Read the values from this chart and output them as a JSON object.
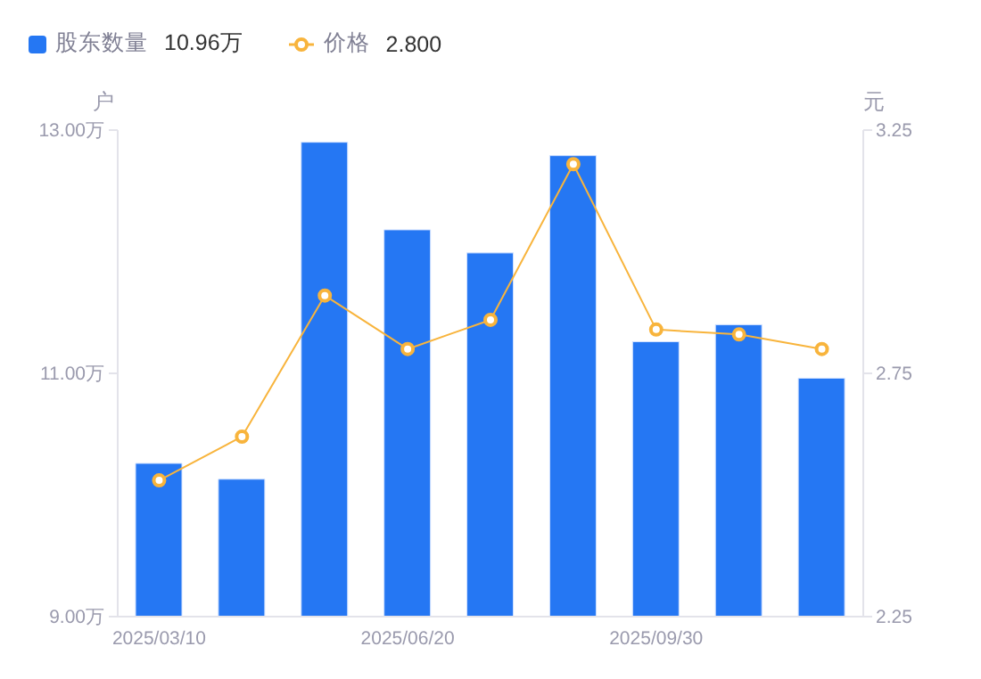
{
  "chart_data": {
    "type": "bar",
    "categories": [
      "2025/03/10",
      null,
      null,
      "2025/06/20",
      null,
      null,
      "2025/09/30",
      null,
      null
    ],
    "series": [
      {
        "name": "股东数量",
        "color": "#2577f3",
        "values": [
          10.26,
          10.13,
          12.9,
          12.18,
          11.99,
          12.79,
          11.26,
          11.4,
          10.96
        ]
      },
      {
        "name": "价格",
        "type": "line",
        "axis": "y2",
        "color": "#f8b43c",
        "values": [
          2.53,
          2.62,
          2.91,
          2.8,
          2.86,
          3.18,
          2.84,
          2.83,
          2.8
        ]
      }
    ],
    "ylabel": "户",
    "y2label": "元",
    "ylim": [
      9,
      13
    ],
    "yticks": [
      {
        "value": 9,
        "label": "9.00万"
      },
      {
        "value": 11,
        "label": "11.00万"
      },
      {
        "value": 13,
        "label": "13.00万"
      }
    ],
    "y2lim": [
      2.25,
      3.25
    ],
    "y2ticks": [
      2.25,
      2.75,
      3.25
    ],
    "annotations": [
      "10.96万",
      "2.800"
    ],
    "legend": "top left",
    "marker": "circle",
    "line_style": "solid",
    "grid": false
  }
}
